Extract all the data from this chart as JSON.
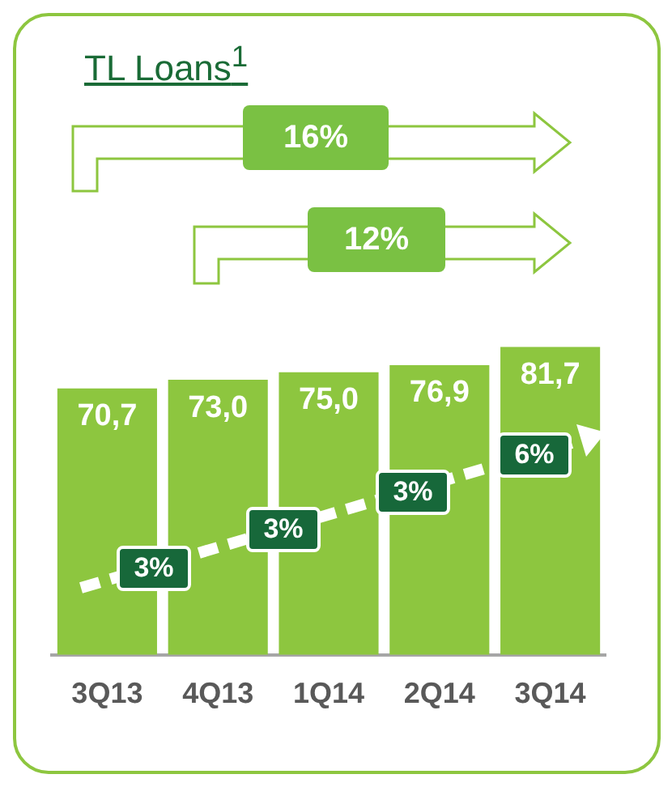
{
  "chart_data": {
    "type": "bar",
    "title": "TL Loans$^{1}$",
    "categories": [
      "3Q13",
      "4Q13",
      "1Q14",
      "2Q14",
      "3Q14"
    ],
    "values": [
      70.7,
      73.0,
      75.0,
      76.9,
      81.7
    ],
    "value_labels": [
      "70,7",
      "73,0",
      "75,0",
      "76,9",
      "81,7"
    ],
    "color": "#8dc63f",
    "tick_labels": "x",
    "grid": false,
    "legend": false,
    "annotations": [
      "16%",
      "12%",
      "3%",
      "3%",
      "3%",
      "6%"
    ]
  }
}
